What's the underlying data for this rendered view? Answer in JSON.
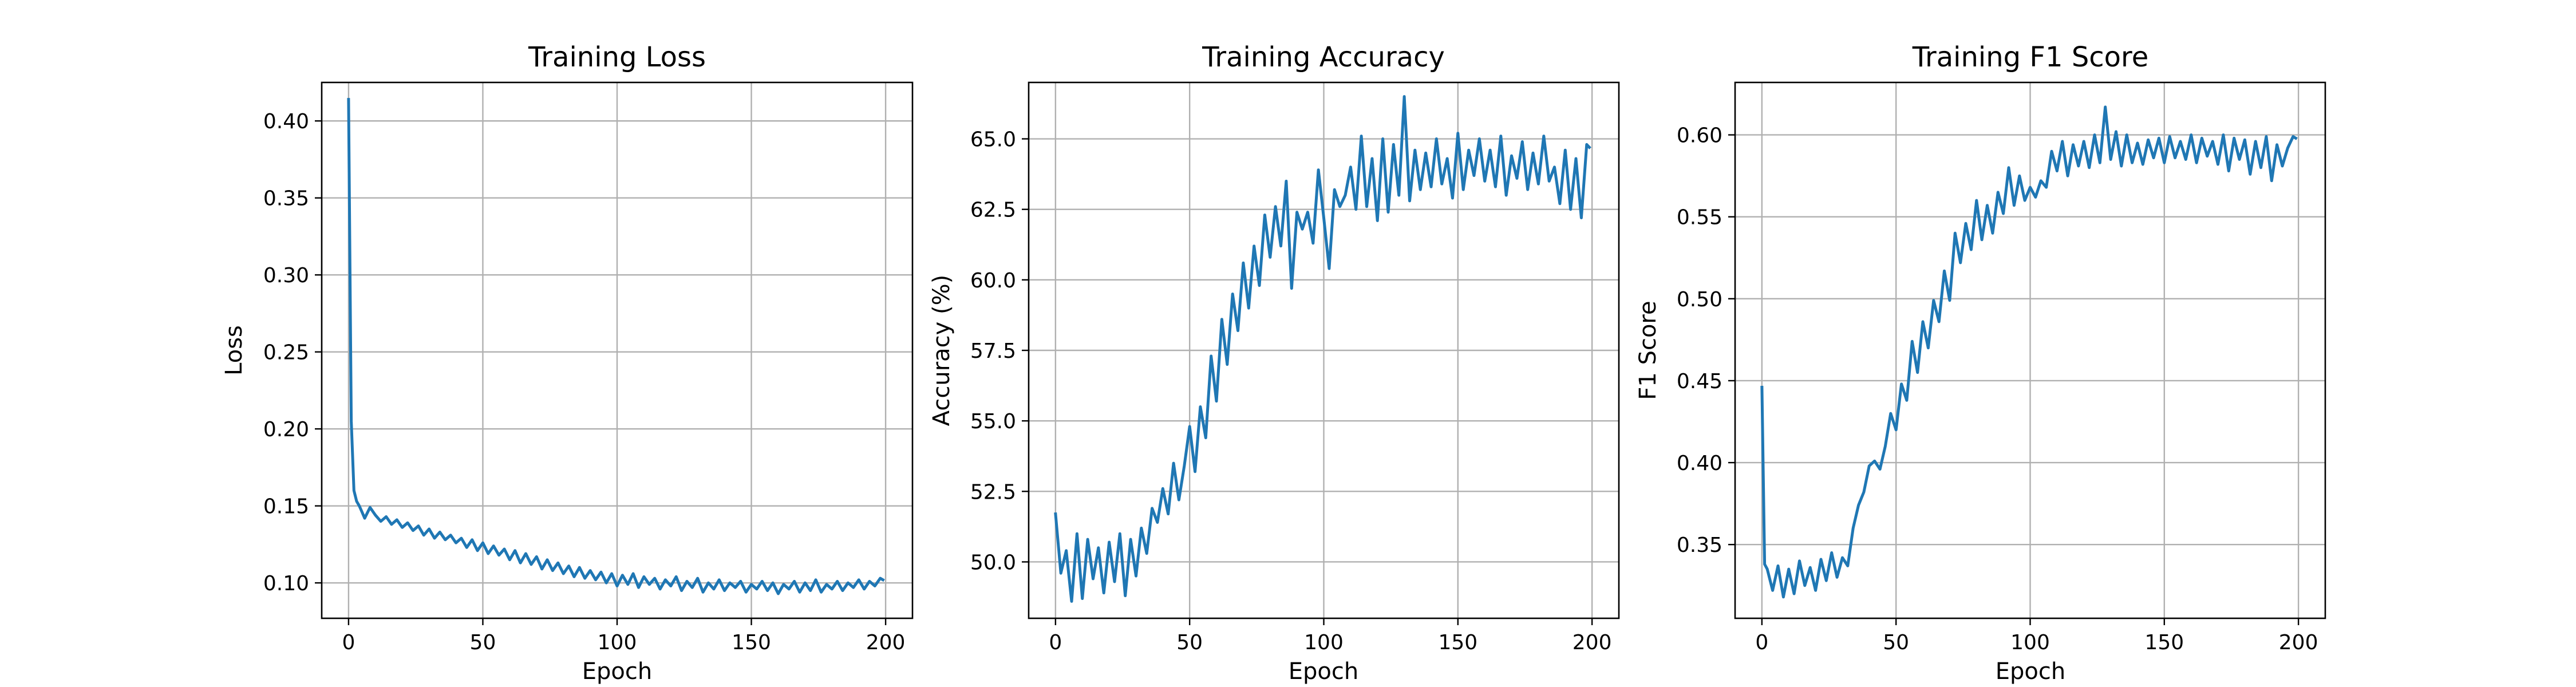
{
  "figure": {
    "background": "#ffffff",
    "line_color": "#1f77b4",
    "grid_color": "#b0b0b0"
  },
  "chart_data": [
    {
      "type": "line",
      "title": "Training Loss",
      "xlabel": "Epoch",
      "ylabel": "Loss",
      "xlim": [
        -10,
        210
      ],
      "ylim": [
        0.077,
        0.425
      ],
      "xticks": [
        0,
        50,
        100,
        150,
        200
      ],
      "yticks": [
        0.1,
        0.15,
        0.2,
        0.25,
        0.3,
        0.35,
        0.4
      ],
      "ytick_labels": [
        "0.10",
        "0.15",
        "0.20",
        "0.25",
        "0.30",
        "0.35",
        "0.40"
      ],
      "grid": true,
      "series": [
        {
          "color": "#1f77b4",
          "x": [
            0,
            1,
            2,
            3,
            4,
            5,
            6,
            8,
            10,
            12,
            14,
            16,
            18,
            20,
            22,
            24,
            26,
            28,
            30,
            32,
            34,
            36,
            38,
            40,
            42,
            44,
            46,
            48,
            50,
            52,
            54,
            56,
            58,
            60,
            62,
            64,
            66,
            68,
            70,
            72,
            74,
            76,
            78,
            80,
            82,
            84,
            86,
            88,
            90,
            92,
            94,
            96,
            98,
            100,
            102,
            104,
            106,
            108,
            110,
            112,
            114,
            116,
            118,
            120,
            122,
            124,
            126,
            128,
            130,
            132,
            134,
            136,
            138,
            140,
            142,
            144,
            146,
            148,
            150,
            152,
            154,
            156,
            158,
            160,
            162,
            164,
            166,
            168,
            170,
            172,
            174,
            176,
            178,
            180,
            182,
            184,
            186,
            188,
            190,
            192,
            194,
            196,
            198,
            199
          ],
          "values": [
            0.414,
            0.205,
            0.16,
            0.153,
            0.15,
            0.146,
            0.142,
            0.149,
            0.144,
            0.14,
            0.143,
            0.138,
            0.141,
            0.136,
            0.139,
            0.134,
            0.137,
            0.131,
            0.135,
            0.129,
            0.133,
            0.128,
            0.131,
            0.126,
            0.129,
            0.123,
            0.128,
            0.121,
            0.126,
            0.119,
            0.124,
            0.118,
            0.122,
            0.115,
            0.121,
            0.113,
            0.119,
            0.112,
            0.117,
            0.109,
            0.115,
            0.108,
            0.113,
            0.106,
            0.111,
            0.104,
            0.11,
            0.103,
            0.108,
            0.102,
            0.107,
            0.1,
            0.106,
            0.098,
            0.105,
            0.099,
            0.106,
            0.097,
            0.104,
            0.099,
            0.103,
            0.096,
            0.102,
            0.098,
            0.104,
            0.095,
            0.101,
            0.097,
            0.103,
            0.094,
            0.1,
            0.096,
            0.102,
            0.095,
            0.1,
            0.097,
            0.101,
            0.094,
            0.099,
            0.096,
            0.101,
            0.095,
            0.1,
            0.093,
            0.099,
            0.096,
            0.101,
            0.094,
            0.1,
            0.095,
            0.102,
            0.094,
            0.099,
            0.096,
            0.101,
            0.095,
            0.1,
            0.097,
            0.102,
            0.096,
            0.101,
            0.098,
            0.103,
            0.102
          ]
        }
      ]
    },
    {
      "type": "line",
      "title": "Training Accuracy",
      "xlabel": "Epoch",
      "ylabel": "Accuracy (%)",
      "xlim": [
        -10,
        210
      ],
      "ylim": [
        48.0,
        67.0
      ],
      "xticks": [
        0,
        50,
        100,
        150,
        200
      ],
      "yticks": [
        50.0,
        52.5,
        55.0,
        57.5,
        60.0,
        62.5,
        65.0
      ],
      "ytick_labels": [
        "50.0",
        "52.5",
        "55.0",
        "57.5",
        "60.0",
        "62.5",
        "65.0"
      ],
      "grid": true,
      "series": [
        {
          "color": "#1f77b4",
          "x": [
            0,
            2,
            4,
            6,
            8,
            10,
            12,
            14,
            16,
            18,
            20,
            22,
            24,
            26,
            28,
            30,
            32,
            34,
            36,
            38,
            40,
            42,
            44,
            46,
            48,
            50,
            52,
            54,
            56,
            58,
            60,
            62,
            64,
            66,
            68,
            70,
            72,
            74,
            76,
            78,
            80,
            82,
            84,
            86,
            88,
            90,
            92,
            94,
            96,
            98,
            100,
            102,
            104,
            106,
            108,
            110,
            112,
            114,
            116,
            118,
            120,
            122,
            124,
            126,
            128,
            130,
            132,
            134,
            136,
            138,
            140,
            142,
            144,
            146,
            148,
            150,
            152,
            154,
            156,
            158,
            160,
            162,
            164,
            166,
            168,
            170,
            172,
            174,
            176,
            178,
            180,
            182,
            184,
            186,
            188,
            190,
            192,
            194,
            196,
            198,
            199
          ],
          "values": [
            51.7,
            49.6,
            50.4,
            48.6,
            51.0,
            48.7,
            50.8,
            49.4,
            50.5,
            48.9,
            50.7,
            49.3,
            51.0,
            48.8,
            50.8,
            49.5,
            51.2,
            50.3,
            51.9,
            51.4,
            52.6,
            51.7,
            53.5,
            52.2,
            53.4,
            54.8,
            53.2,
            55.5,
            54.4,
            57.3,
            55.7,
            58.6,
            57.0,
            59.5,
            58.2,
            60.6,
            59.0,
            61.2,
            59.8,
            62.3,
            60.8,
            62.6,
            61.2,
            63.5,
            59.7,
            62.4,
            61.8,
            62.4,
            61.3,
            63.9,
            62.2,
            60.4,
            63.2,
            62.6,
            63.0,
            64.0,
            62.5,
            65.1,
            62.6,
            64.3,
            62.1,
            65.0,
            62.4,
            64.8,
            63.0,
            66.5,
            62.8,
            64.6,
            63.2,
            64.5,
            63.3,
            65.0,
            63.4,
            64.3,
            62.9,
            65.2,
            63.2,
            64.6,
            63.7,
            65.0,
            63.5,
            64.6,
            63.3,
            65.1,
            63.0,
            64.4,
            63.6,
            64.9,
            63.2,
            64.5,
            63.4,
            65.1,
            63.5,
            64.0,
            62.7,
            64.6,
            62.5,
            64.3,
            62.2,
            64.8,
            64.7
          ]
        }
      ]
    },
    {
      "type": "line",
      "title": "Training F1 Score",
      "xlabel": "Epoch",
      "ylabel": "F1 Score",
      "xlim": [
        -10,
        210
      ],
      "ylim": [
        0.305,
        0.632
      ],
      "xticks": [
        0,
        50,
        100,
        150,
        200
      ],
      "yticks": [
        0.35,
        0.4,
        0.45,
        0.5,
        0.55,
        0.6
      ],
      "ytick_labels": [
        "0.35",
        "0.40",
        "0.45",
        "0.50",
        "0.55",
        "0.60"
      ],
      "grid": true,
      "series": [
        {
          "color": "#1f77b4",
          "x": [
            0,
            1,
            2,
            4,
            6,
            8,
            10,
            12,
            14,
            16,
            18,
            20,
            22,
            24,
            26,
            28,
            30,
            32,
            34,
            36,
            38,
            40,
            42,
            44,
            46,
            48,
            50,
            52,
            54,
            56,
            58,
            60,
            62,
            64,
            66,
            68,
            70,
            72,
            74,
            76,
            78,
            80,
            82,
            84,
            86,
            88,
            90,
            92,
            94,
            96,
            98,
            100,
            102,
            104,
            106,
            108,
            110,
            112,
            114,
            116,
            118,
            120,
            122,
            124,
            126,
            128,
            130,
            132,
            134,
            136,
            138,
            140,
            142,
            144,
            146,
            148,
            150,
            152,
            154,
            156,
            158,
            160,
            162,
            164,
            166,
            168,
            170,
            172,
            174,
            176,
            178,
            180,
            182,
            184,
            186,
            188,
            190,
            192,
            194,
            196,
            198,
            199
          ],
          "values": [
            0.446,
            0.338,
            0.335,
            0.322,
            0.337,
            0.318,
            0.335,
            0.32,
            0.34,
            0.325,
            0.336,
            0.322,
            0.341,
            0.328,
            0.345,
            0.33,
            0.342,
            0.337,
            0.36,
            0.374,
            0.382,
            0.398,
            0.401,
            0.396,
            0.41,
            0.43,
            0.42,
            0.448,
            0.438,
            0.474,
            0.455,
            0.486,
            0.47,
            0.499,
            0.486,
            0.517,
            0.499,
            0.54,
            0.522,
            0.546,
            0.53,
            0.56,
            0.536,
            0.557,
            0.54,
            0.565,
            0.552,
            0.58,
            0.557,
            0.575,
            0.56,
            0.568,
            0.562,
            0.572,
            0.568,
            0.59,
            0.578,
            0.596,
            0.575,
            0.594,
            0.581,
            0.596,
            0.58,
            0.6,
            0.583,
            0.617,
            0.585,
            0.602,
            0.581,
            0.6,
            0.583,
            0.595,
            0.582,
            0.597,
            0.586,
            0.598,
            0.583,
            0.599,
            0.586,
            0.596,
            0.585,
            0.6,
            0.583,
            0.598,
            0.587,
            0.596,
            0.582,
            0.6,
            0.578,
            0.598,
            0.585,
            0.597,
            0.576,
            0.596,
            0.58,
            0.599,
            0.572,
            0.594,
            0.581,
            0.592,
            0.599,
            0.598
          ]
        }
      ]
    }
  ]
}
